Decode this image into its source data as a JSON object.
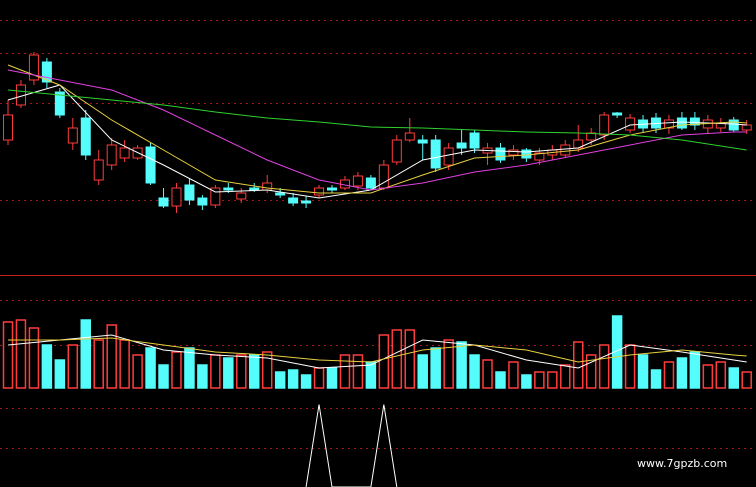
{
  "chart_data": [
    {
      "type": "candlestick",
      "open": [
        135,
        170,
        195,
        213,
        183,
        132,
        157,
        95,
        110,
        117,
        117,
        128,
        77,
        69,
        90,
        77,
        70,
        87,
        76,
        87,
        85,
        82,
        77,
        74,
        80,
        87,
        87,
        89,
        97,
        87,
        113,
        135,
        135,
        135,
        110,
        132,
        142,
        122,
        127,
        120,
        125,
        115,
        120,
        120,
        127,
        135,
        140,
        162,
        145,
        155,
        157,
        147,
        157,
        157,
        147,
        147,
        155,
        145
      ],
      "high": [
        175,
        195,
        223,
        217,
        187,
        157,
        165,
        125,
        137,
        135,
        130,
        132,
        87,
        92,
        97,
        80,
        90,
        92,
        87,
        92,
        100,
        87,
        82,
        79,
        90,
        90,
        99,
        103,
        100,
        115,
        140,
        157,
        140,
        140,
        132,
        145,
        145,
        132,
        132,
        130,
        127,
        127,
        130,
        135,
        150,
        147,
        163,
        163,
        161,
        160,
        162,
        160,
        163,
        163,
        160,
        157,
        158,
        155
      ],
      "low": [
        130,
        167,
        190,
        187,
        157,
        125,
        115,
        90,
        105,
        113,
        115,
        90,
        67,
        62,
        70,
        65,
        67,
        82,
        72,
        83,
        82,
        77,
        69,
        67,
        77,
        82,
        85,
        85,
        85,
        85,
        110,
        133,
        115,
        103,
        105,
        120,
        122,
        110,
        112,
        115,
        113,
        110,
        115,
        117,
        123,
        130,
        135,
        157,
        142,
        143,
        142,
        141,
        145,
        145,
        142,
        143,
        143,
        141
      ],
      "close": [
        160,
        190,
        220,
        193,
        160,
        147,
        120,
        115,
        130,
        127,
        127,
        92,
        69,
        87,
        75,
        70,
        87,
        85,
        82,
        85,
        92,
        80,
        72,
        72,
        87,
        85,
        95,
        99,
        87,
        110,
        135,
        142,
        132,
        107,
        127,
        127,
        127,
        127,
        115,
        125,
        117,
        122,
        125,
        130,
        135,
        142,
        160,
        160,
        157,
        147,
        147,
        155,
        147,
        150,
        155,
        152,
        145,
        150
      ],
      "up_color": "#ff3c3c",
      "down_color": "#54fcfc",
      "ylim": [
        0,
        275
      ],
      "yticks": [
        75,
        172,
        222,
        255
      ],
      "grid": true,
      "series": [
        {
          "color": "#ffffff",
          "x": [
            0,
            4,
            8,
            12,
            16,
            20,
            24,
            28,
            32,
            36,
            40,
            44,
            48,
            52,
            56,
            57
          ],
          "values": [
            175,
            190,
            135,
            110,
            83,
            85,
            77,
            85,
            115,
            125,
            123,
            127,
            150,
            153,
            151,
            150
          ]
        },
        {
          "color": "#e8d040",
          "x": [
            0,
            4,
            8,
            12,
            16,
            20,
            24,
            28,
            32,
            36,
            40,
            44,
            48,
            52,
            56,
            57
          ],
          "values": [
            210,
            190,
            155,
            125,
            95,
            87,
            82,
            82,
            100,
            117,
            120,
            125,
            140,
            150,
            153,
            152
          ]
        },
        {
          "color": "#e040e0",
          "x": [
            0,
            4,
            8,
            12,
            16,
            20,
            24,
            28,
            32,
            36,
            40,
            44,
            48,
            52,
            56,
            57
          ],
          "values": [
            205,
            195,
            185,
            165,
            140,
            115,
            95,
            85,
            92,
            103,
            110,
            120,
            130,
            140,
            143,
            143
          ]
        },
        {
          "color": "#30d030",
          "x": [
            0,
            4,
            8,
            12,
            16,
            20,
            24,
            28,
            32,
            36,
            40,
            44,
            48,
            52,
            56,
            57
          ],
          "values": [
            185,
            180,
            175,
            170,
            163,
            157,
            153,
            148,
            147,
            145,
            143,
            142,
            140,
            135,
            127,
            125
          ]
        }
      ]
    },
    {
      "type": "bar",
      "values": [
        66,
        68,
        60,
        43,
        28,
        43,
        68,
        48,
        63,
        48,
        33,
        40,
        23,
        36,
        40,
        23,
        33,
        30,
        33,
        33,
        36,
        16,
        18,
        13,
        20,
        20,
        33,
        33,
        26,
        53,
        58,
        58,
        33,
        40,
        48,
        46,
        33,
        28,
        16,
        26,
        13,
        16,
        16,
        23,
        46,
        33,
        43,
        72,
        43,
        33,
        18,
        26,
        30,
        36,
        23,
        26,
        20,
        16
      ],
      "ylim": [
        0,
        110
      ],
      "yticks": [
        43,
        88
      ],
      "grid": true,
      "series": [
        {
          "color": "#ffffff",
          "x": [
            0,
            4,
            8,
            12,
            16,
            20,
            24,
            28,
            32,
            36,
            40,
            44,
            48,
            52,
            56,
            57
          ],
          "values": [
            43,
            48,
            53,
            38,
            33,
            30,
            20,
            23,
            48,
            43,
            28,
            20,
            43,
            36,
            28,
            26
          ]
        },
        {
          "color": "#e8d040",
          "x": [
            0,
            4,
            8,
            12,
            16,
            20,
            24,
            28,
            32,
            36,
            40,
            44,
            48,
            52,
            56,
            57
          ],
          "values": [
            48,
            48,
            50,
            43,
            36,
            33,
            28,
            26,
            38,
            43,
            38,
            26,
            33,
            38,
            33,
            32
          ]
        }
      ]
    },
    {
      "type": "line",
      "ylim": [
        0,
        100
      ],
      "yticks": [
        40,
        81
      ],
      "grid": true,
      "series": [
        {
          "color": "#ffffff",
          "x": [
            23,
            24,
            25,
            28,
            29,
            30
          ],
          "values": [
            0,
            85,
            0,
            0,
            85,
            0
          ]
        }
      ]
    }
  ],
  "watermark": "www.7gpzb.com"
}
